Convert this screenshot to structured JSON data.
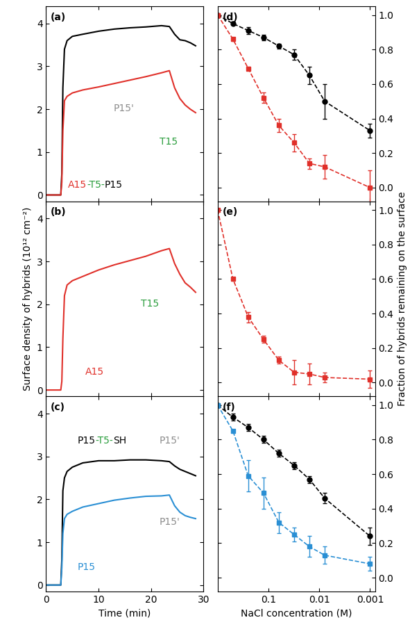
{
  "chart_data": [
    {
      "type": "line",
      "label": "(a)",
      "xlim": [
        0,
        30
      ],
      "xticks": [
        0,
        10,
        20,
        30
      ],
      "ylim": [
        -0.15,
        4.4
      ],
      "yticks": [
        0,
        1,
        2,
        3,
        4
      ],
      "tick_labels": "y",
      "series": [
        {
          "color": "#000000",
          "line_style": "solid",
          "x": [
            0,
            1,
            2,
            2.8,
            3.0,
            3.2,
            3.5,
            4,
            5,
            7,
            10,
            13,
            16,
            19,
            22,
            23.5,
            24.5,
            25.5,
            26.5,
            27.5,
            28.5
          ],
          "values": [
            0,
            0,
            0,
            0,
            0.5,
            2.5,
            3.4,
            3.6,
            3.7,
            3.75,
            3.82,
            3.87,
            3.9,
            3.92,
            3.95,
            3.93,
            3.75,
            3.62,
            3.6,
            3.55,
            3.48
          ]
        },
        {
          "color": "#e0302a",
          "line_style": "solid",
          "x": [
            0,
            1,
            2,
            2.8,
            3.0,
            3.2,
            3.5,
            4,
            5,
            7,
            10,
            13,
            16,
            19,
            22,
            23.5,
            24.5,
            25.5,
            26.5,
            27.5,
            28.5
          ],
          "values": [
            0,
            0,
            0,
            0,
            0.3,
            1.5,
            2.2,
            2.3,
            2.38,
            2.45,
            2.52,
            2.6,
            2.68,
            2.76,
            2.85,
            2.9,
            2.5,
            2.25,
            2.1,
            2.0,
            1.92
          ]
        }
      ],
      "annotations": [
        {
          "text": "P15'",
          "color": "#8c8c8c"
        },
        {
          "parts": [
            {
              "text": "A15",
              "color": "#e0302a"
            },
            {
              "text": "-T5-",
              "color": "#2a9d3c"
            },
            {
              "text": "P15",
              "color": "#000000"
            }
          ]
        },
        {
          "text": "T15",
          "color": "#2a9d3c"
        }
      ]
    },
    {
      "type": "line",
      "label": "(b)",
      "xlim": [
        0,
        30
      ],
      "xticks": [
        0,
        10,
        20,
        30
      ],
      "ylim": [
        -0.15,
        4.4
      ],
      "yticks": [
        0,
        1,
        2,
        3,
        4
      ],
      "tick_labels": "y",
      "y_label": "Surface density of hybrids (10¹² cm⁻²)",
      "series": [
        {
          "color": "#e0302a",
          "line_style": "solid",
          "x": [
            0,
            1,
            2,
            2.8,
            3.0,
            3.2,
            3.5,
            4,
            5,
            7,
            10,
            13,
            16,
            19,
            22,
            23.5,
            24.5,
            25.5,
            26.5,
            27.5,
            28.5
          ],
          "values": [
            0,
            0,
            0,
            0,
            0.2,
            1.2,
            2.2,
            2.45,
            2.55,
            2.65,
            2.8,
            2.92,
            3.02,
            3.12,
            3.25,
            3.3,
            2.95,
            2.7,
            2.5,
            2.4,
            2.28
          ]
        }
      ],
      "annotations": [
        {
          "text": "T15",
          "color": "#2a9d3c"
        },
        {
          "text": "A15",
          "color": "#e0302a"
        }
      ]
    },
    {
      "type": "line",
      "label": "(c)",
      "xlim": [
        0,
        30
      ],
      "xticks": [
        0,
        10,
        20,
        30
      ],
      "ylim": [
        -0.15,
        4.4
      ],
      "yticks": [
        0,
        1,
        2,
        3,
        4
      ],
      "x_label": "Time (min)",
      "series": [
        {
          "color": "#000000",
          "line_style": "solid",
          "x": [
            0,
            1,
            2,
            2.8,
            3.0,
            3.2,
            3.5,
            4,
            5,
            7,
            10,
            13,
            16,
            19,
            22,
            23.5,
            24.5,
            25.5,
            26.5,
            27.5,
            28.5
          ],
          "values": [
            0,
            0,
            0,
            0,
            0.6,
            2.2,
            2.5,
            2.65,
            2.75,
            2.85,
            2.9,
            2.9,
            2.92,
            2.92,
            2.9,
            2.88,
            2.78,
            2.7,
            2.65,
            2.6,
            2.55
          ]
        },
        {
          "color": "#2a8fd4",
          "line_style": "solid",
          "x": [
            0,
            1,
            2,
            2.8,
            3.0,
            3.2,
            3.5,
            4,
            5,
            7,
            10,
            13,
            16,
            19,
            22,
            23.5,
            24.5,
            25.5,
            26.5,
            27.5,
            28.5
          ],
          "values": [
            0,
            0,
            0,
            0,
            0.4,
            1.2,
            1.55,
            1.65,
            1.72,
            1.82,
            1.9,
            1.98,
            2.03,
            2.07,
            2.08,
            2.1,
            1.85,
            1.7,
            1.62,
            1.58,
            1.55
          ]
        }
      ],
      "annotations": [
        {
          "parts": [
            {
              "text": "P15",
              "color": "#000000"
            },
            {
              "text": "-T5-",
              "color": "#2a9d3c"
            },
            {
              "text": "SH",
              "color": "#000000"
            }
          ]
        },
        {
          "text": "P15'",
          "color": "#8c8c8c"
        },
        {
          "text": "P15'",
          "color": "#8c8c8c"
        },
        {
          "text": "P15",
          "color": "#2a8fd4"
        }
      ]
    },
    {
      "type": "line",
      "label": "(d)",
      "log": "x",
      "xlim": [
        1,
        0.0008
      ],
      "xticks": [
        0.1,
        0.01,
        0.001
      ],
      "ylim": [
        -0.08,
        1.05
      ],
      "yticks": [
        {
          "value": 0,
          "label": "0.0"
        },
        0.2,
        0.4,
        0.6,
        0.8,
        {
          "value": 1,
          "label": "1.0"
        }
      ],
      "tick_labels": "y",
      "series": [
        {
          "color": "#000000",
          "marker": "circle",
          "line_style": "dashed",
          "x": [
            1,
            0.5,
            0.25,
            0.125,
            0.0625,
            0.03125,
            0.015625,
            0.0078125,
            0.001
          ],
          "values": [
            1.0,
            0.95,
            0.91,
            0.87,
            0.82,
            0.77,
            0.65,
            0.5,
            0.33
          ],
          "errors": [
            0,
            0.01,
            0.02,
            0.015,
            0.015,
            0.03,
            0.05,
            0.1,
            0.04
          ]
        },
        {
          "color": "#e0302a",
          "marker": "square",
          "line_style": "dashed",
          "x": [
            1,
            0.5,
            0.25,
            0.125,
            0.0625,
            0.03125,
            0.015625,
            0.0078125,
            0.001
          ],
          "values": [
            1.0,
            0.86,
            0.69,
            0.52,
            0.36,
            0.26,
            0.14,
            0.12,
            0.0
          ],
          "errors": [
            0,
            0.01,
            0.01,
            0.03,
            0.04,
            0.05,
            0.03,
            0.07,
            0.1
          ]
        }
      ]
    },
    {
      "type": "line",
      "label": "(e)",
      "log": "x",
      "xlim": [
        1,
        0.0008
      ],
      "xticks": [
        0.1,
        0.01,
        0.001
      ],
      "ylim": [
        -0.08,
        1.05
      ],
      "yticks": [
        {
          "value": 0,
          "label": "0.0"
        },
        0.2,
        0.4,
        0.6,
        0.8,
        {
          "value": 1,
          "label": "1.0"
        }
      ],
      "tick_labels": "y",
      "y_label": "Fraction of hybrids remaining on the surface",
      "series": [
        {
          "color": "#e0302a",
          "marker": "square",
          "line_style": "dashed",
          "x": [
            1,
            0.5,
            0.25,
            0.125,
            0.0625,
            0.03125,
            0.015625,
            0.0078125,
            0.001
          ],
          "values": [
            1.0,
            0.6,
            0.38,
            0.25,
            0.13,
            0.06,
            0.05,
            0.03,
            0.02
          ],
          "errors": [
            0,
            0.01,
            0.03,
            0.02,
            0.02,
            0.07,
            0.06,
            0.03,
            0.05
          ]
        }
      ]
    },
    {
      "type": "line",
      "label": "(f)",
      "log": "x",
      "xlim": [
        1,
        0.0008
      ],
      "xticks": [
        0.1,
        0.01,
        0.001
      ],
      "ylim": [
        -0.08,
        1.05
      ],
      "yticks": [
        {
          "value": 0,
          "label": "0.0"
        },
        0.2,
        0.4,
        0.6,
        0.8,
        {
          "value": 1,
          "label": "1.0"
        }
      ],
      "x_label": "NaCl concentration (M)",
      "series": [
        {
          "color": "#000000",
          "marker": "circle",
          "line_style": "dashed",
          "x": [
            1,
            0.5,
            0.25,
            0.125,
            0.0625,
            0.03125,
            0.015625,
            0.0078125,
            0.001
          ],
          "values": [
            1.0,
            0.93,
            0.87,
            0.8,
            0.72,
            0.65,
            0.57,
            0.46,
            0.24
          ],
          "errors": [
            0,
            0.02,
            0.02,
            0.02,
            0.02,
            0.02,
            0.02,
            0.03,
            0.05
          ]
        },
        {
          "color": "#2a8fd4",
          "marker": "square",
          "line_style": "dashed",
          "x": [
            1,
            0.5,
            0.25,
            0.125,
            0.0625,
            0.03125,
            0.015625,
            0.0078125,
            0.001
          ],
          "values": [
            1.0,
            0.85,
            0.59,
            0.49,
            0.32,
            0.25,
            0.18,
            0.13,
            0.08
          ],
          "errors": [
            0,
            0.01,
            0.09,
            0.09,
            0.06,
            0.04,
            0.06,
            0.05,
            0.04
          ]
        }
      ]
    }
  ]
}
